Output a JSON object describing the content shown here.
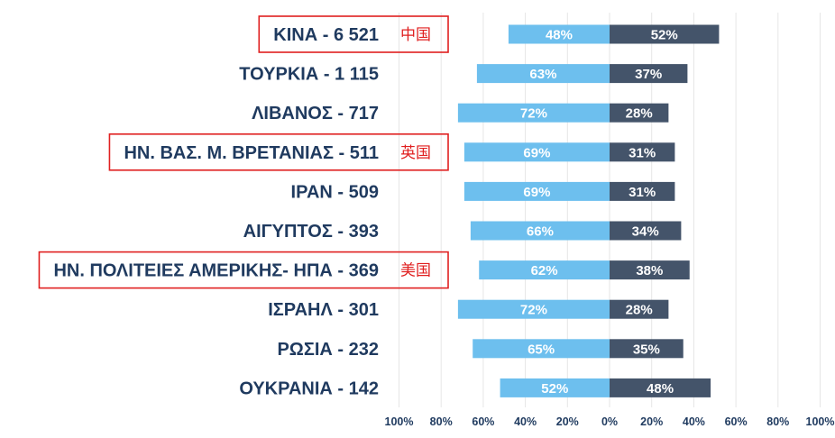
{
  "colors": {
    "left_series": "#6dbfee",
    "right_series": "#44546a",
    "label_text": "#1f3a5f",
    "highlight": "#e02020",
    "grid": "#e6e6e6"
  },
  "chart_data": {
    "type": "bar",
    "orientation": "horizontal-diverging",
    "title": "",
    "xlabel": "",
    "ylabel": "",
    "xlim": [
      -100,
      100
    ],
    "grid": true,
    "x_tick_labels": [
      "100%",
      "80%",
      "60%",
      "40%",
      "20%",
      "0%",
      "20%",
      "40%",
      "60%",
      "80%",
      "100%"
    ],
    "x_ticks": [
      -100,
      -80,
      -60,
      -40,
      -20,
      0,
      20,
      40,
      60,
      80,
      100
    ],
    "categories": [
      "ΚΙΝΑ - 6 521",
      "ΤΟΥΡΚΙΑ - 1 115",
      "ΛΙΒΑΝΟΣ -  717",
      "ΗΝ. ΒΑΣ. Μ. ΒΡΕΤΑΝΙΑΣ -  511",
      "ΙΡΑΝ -  509",
      "ΑΙΓΥΠΤΟΣ -  393",
      "ΗΝ. ΠΟΛΙΤΕΙΕΣ ΑΜΕΡΙΚΗΣ- ΗΠΑ -  369",
      "ΙΣΡΑΗΛ -  301",
      "ΡΩΣΙΑ -  232",
      "ΟΥΚΡΑΝΙΑ -  142"
    ],
    "series": [
      {
        "side": "left",
        "values": [
          48,
          63,
          72,
          69,
          69,
          66,
          62,
          72,
          65,
          52
        ],
        "labels": [
          "48%",
          "63%",
          "72%",
          "69%",
          "69%",
          "66%",
          "62%",
          "72%",
          "65%",
          "52%"
        ]
      },
      {
        "side": "right",
        "values": [
          52,
          37,
          28,
          31,
          31,
          34,
          38,
          28,
          35,
          48
        ],
        "labels": [
          "52%",
          "37%",
          "28%",
          "31%",
          "31%",
          "34%",
          "38%",
          "28%",
          "35%",
          "48%"
        ]
      }
    ],
    "annotations": [
      {
        "category_index": 0,
        "text": "中国"
      },
      {
        "category_index": 3,
        "text": "英国"
      },
      {
        "category_index": 6,
        "text": "美国"
      }
    ]
  }
}
